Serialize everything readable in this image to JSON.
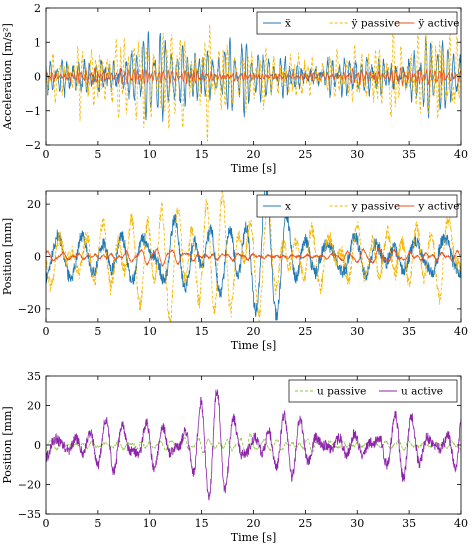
{
  "chart_data": [
    {
      "type": "line",
      "xlabel": "Time [s]",
      "ylabel": "Acceleration [m/s²]",
      "xlim": [
        0,
        40
      ],
      "ylim": [
        -2,
        2
      ],
      "xticks": [
        "0",
        "5",
        "10",
        "15",
        "20",
        "25",
        "30",
        "35",
        "40"
      ],
      "yticks": [
        "−2",
        "−1",
        "0",
        "1",
        "2"
      ],
      "ytick_values": [
        -2,
        -1,
        0,
        1,
        2
      ],
      "legend_position": "top-right",
      "grid": false,
      "series": [
        {
          "name": "ẍ",
          "color": "#1f77b4",
          "dash": "solid",
          "amplitude": 0.75,
          "cycles_per_s": 2.2
        },
        {
          "name": "ÿ passive",
          "color": "#f5b800",
          "dash": "dashed",
          "amplitude": 0.95,
          "cycles_per_s": 2.0
        },
        {
          "name": "ÿ active",
          "color": "#e8531b",
          "dash": "solid",
          "amplitude": 0.15,
          "cycles_per_s": 2.6
        }
      ]
    },
    {
      "type": "line",
      "xlabel": "Time [s]",
      "ylabel": "Position [mm]",
      "xlim": [
        0,
        40
      ],
      "ylim": [
        -25,
        25
      ],
      "xticks": [
        "0",
        "5",
        "10",
        "15",
        "20",
        "25",
        "30",
        "35",
        "40"
      ],
      "yticks": [
        "−20",
        "0",
        "20"
      ],
      "ytick_values": [
        -20,
        0,
        20
      ],
      "legend_position": "top-right",
      "grid": false,
      "series": [
        {
          "name": "x",
          "color": "#1f77b4",
          "dash": "solid",
          "amplitude": 15,
          "cycles_per_s": 0.55
        },
        {
          "name": "y passive",
          "color": "#f5b800",
          "dash": "dashed",
          "amplitude": 17,
          "cycles_per_s": 0.55
        },
        {
          "name": "y active",
          "color": "#e8531b",
          "dash": "solid",
          "amplitude": 2,
          "cycles_per_s": 0.9
        }
      ]
    },
    {
      "type": "line",
      "xlabel": "Time [s]",
      "ylabel": "Position [mm]",
      "xlim": [
        0,
        40
      ],
      "ylim": [
        -35,
        35
      ],
      "xticks": [
        "0",
        "5",
        "10",
        "15",
        "20",
        "25",
        "30",
        "35",
        "40"
      ],
      "yticks": [
        "−35",
        "−20",
        "0",
        "20",
        "35"
      ],
      "ytick_values": [
        -35,
        -20,
        0,
        20,
        35
      ],
      "legend_position": "top-right",
      "grid": false,
      "series": [
        {
          "name": "u passive",
          "color": "#8dc63f",
          "dash": "dashed",
          "amplitude": 3,
          "cycles_per_s": 1.1
        },
        {
          "name": "u active",
          "color": "#8e24aa",
          "dash": "solid",
          "amplitude": 16,
          "cycles_per_s": 0.55
        }
      ]
    }
  ]
}
